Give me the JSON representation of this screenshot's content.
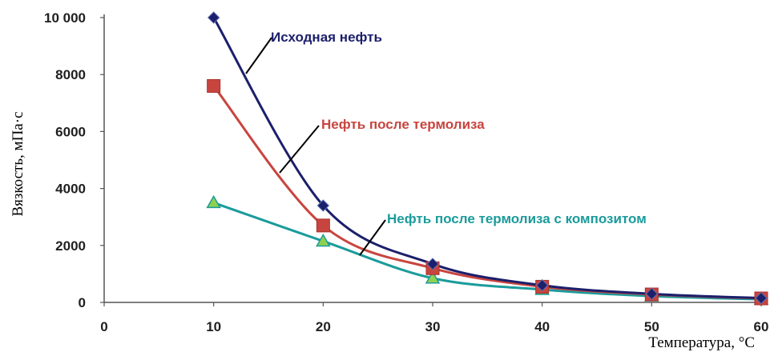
{
  "chart_data": {
    "type": "line",
    "xlabel": "Температура, °C",
    "ylabel": "Вязкость, мПа·с",
    "x_ticks": [
      "0",
      "10",
      "20",
      "30",
      "40",
      "50",
      "60"
    ],
    "y_ticks": [
      "0",
      "2000",
      "4000",
      "6000",
      "8000",
      "10 000"
    ],
    "xlim": [
      0,
      60
    ],
    "ylim": [
      0,
      10000
    ],
    "grid": false,
    "legend": "labels on chart",
    "x": [
      10,
      20,
      30,
      40,
      50,
      60
    ],
    "series": [
      {
        "name": "Исходная нефть",
        "values": [
          10000,
          3400,
          1350,
          600,
          300,
          150
        ],
        "color": "#1c1f6b",
        "marker": "diamond"
      },
      {
        "name": "Нефть после термолиза",
        "values": [
          7600,
          2700,
          1200,
          550,
          280,
          140
        ],
        "color": "#c8453f",
        "marker": "square"
      },
      {
        "name": "Нефть после термолиза с композитом",
        "values": [
          3500,
          2150,
          850,
          450,
          220,
          110
        ],
        "color": "#1b9b9b",
        "marker": "triangle",
        "marker_fill": "#8fd14f"
      }
    ]
  }
}
